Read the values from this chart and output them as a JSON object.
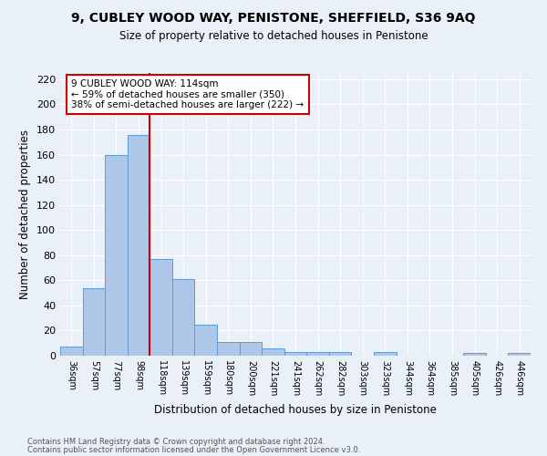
{
  "title": "9, CUBLEY WOOD WAY, PENISTONE, SHEFFIELD, S36 9AQ",
  "subtitle": "Size of property relative to detached houses in Penistone",
  "xlabel": "Distribution of detached houses by size in Penistone",
  "ylabel": "Number of detached properties",
  "footnote1": "Contains HM Land Registry data © Crown copyright and database right 2024.",
  "footnote2": "Contains public sector information licensed under the Open Government Licence v3.0.",
  "bin_labels": [
    "36sqm",
    "57sqm",
    "77sqm",
    "98sqm",
    "118sqm",
    "139sqm",
    "159sqm",
    "180sqm",
    "200sqm",
    "221sqm",
    "241sqm",
    "262sqm",
    "282sqm",
    "303sqm",
    "323sqm",
    "344sqm",
    "364sqm",
    "385sqm",
    "405sqm",
    "426sqm",
    "446sqm"
  ],
  "bar_values": [
    7,
    54,
    160,
    176,
    77,
    61,
    25,
    11,
    11,
    6,
    3,
    3,
    3,
    0,
    3,
    0,
    0,
    0,
    2,
    0,
    2
  ],
  "bar_color": "#aec6e8",
  "bar_edgecolor": "#5b9bd5",
  "annotation_line1": "9 CUBLEY WOOD WAY: 114sqm",
  "annotation_line2": "← 59% of detached houses are smaller (350)",
  "annotation_line3": "38% of semi-detached houses are larger (222) →",
  "annotation_box_color": "#ffffff",
  "annotation_box_edgecolor": "#cc0000",
  "vline_color": "#cc0000",
  "background_color": "#eaf0f8",
  "ylim": [
    0,
    225
  ],
  "yticks": [
    0,
    20,
    40,
    60,
    80,
    100,
    120,
    140,
    160,
    180,
    200,
    220
  ]
}
